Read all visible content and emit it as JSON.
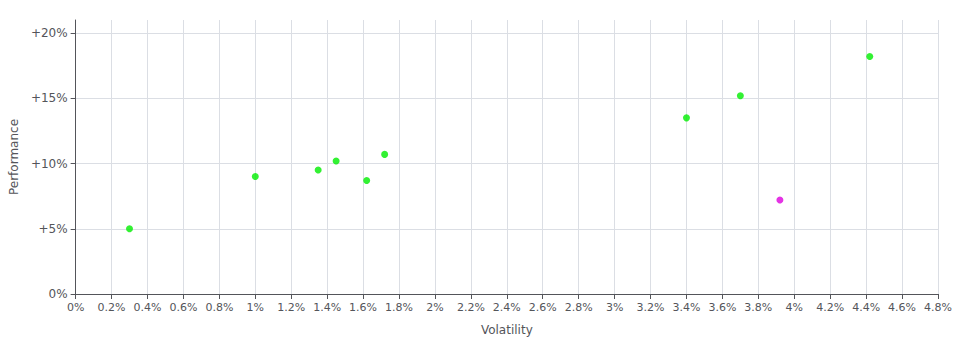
{
  "chart_data": {
    "type": "scatter",
    "xlabel": "Volatility",
    "ylabel": "Performance",
    "series": [
      {
        "color": "#00ee00",
        "values": [
          [
            0.3,
            5.0
          ],
          [
            1.0,
            9.0
          ],
          [
            1.35,
            9.5
          ],
          [
            1.45,
            10.2
          ],
          [
            1.62,
            8.7
          ],
          [
            1.72,
            10.7
          ],
          [
            3.4,
            13.5
          ],
          [
            3.7,
            15.2
          ],
          [
            4.42,
            18.2
          ]
        ]
      },
      {
        "color": "#dd00dd",
        "values": [
          [
            3.92,
            7.2
          ]
        ]
      }
    ],
    "xlim": [
      0.0,
      4.8
    ],
    "ylim": [
      0.0,
      21.0
    ],
    "xticks": [
      {
        "value": 0,
        "label": "0%"
      },
      {
        "value": 0.2,
        "label": "0.2%"
      },
      {
        "value": 0.4,
        "label": "0.4%"
      },
      {
        "value": 0.6,
        "label": "0.6%"
      },
      {
        "value": 0.8,
        "label": "0.8%"
      },
      {
        "value": 1.0,
        "label": "1%"
      },
      {
        "value": 1.2,
        "label": "1.2%"
      },
      {
        "value": 1.4,
        "label": "1.4%"
      },
      {
        "value": 1.6,
        "label": "1.6%"
      },
      {
        "value": 1.8,
        "label": "1.8%"
      },
      {
        "value": 2.0,
        "label": "2%"
      },
      {
        "value": 2.2,
        "label": "2.2%"
      },
      {
        "value": 2.4,
        "label": "2.4%"
      },
      {
        "value": 2.6,
        "label": "2.6%"
      },
      {
        "value": 2.8,
        "label": "2.8%"
      },
      {
        "value": 3.0,
        "label": "3%"
      },
      {
        "value": 3.2,
        "label": "3.2%"
      },
      {
        "value": 3.4,
        "label": "3.4%"
      },
      {
        "value": 3.6,
        "label": "3.6%"
      },
      {
        "value": 3.8,
        "label": "3.8%"
      },
      {
        "value": 4.0,
        "label": "4%"
      },
      {
        "value": 4.2,
        "label": "4.2%"
      },
      {
        "value": 4.4,
        "label": "4.4%"
      },
      {
        "value": 4.6,
        "label": "4.6%"
      },
      {
        "value": 4.8,
        "label": "4.8%"
      }
    ],
    "yticks": [
      {
        "value": 0,
        "label": "0%"
      },
      {
        "value": 5,
        "label": "+5%"
      },
      {
        "value": 10,
        "label": "+10%"
      },
      {
        "value": 15,
        "label": "+15%"
      },
      {
        "value": 20,
        "label": "+20%"
      }
    ],
    "grid": true
  }
}
